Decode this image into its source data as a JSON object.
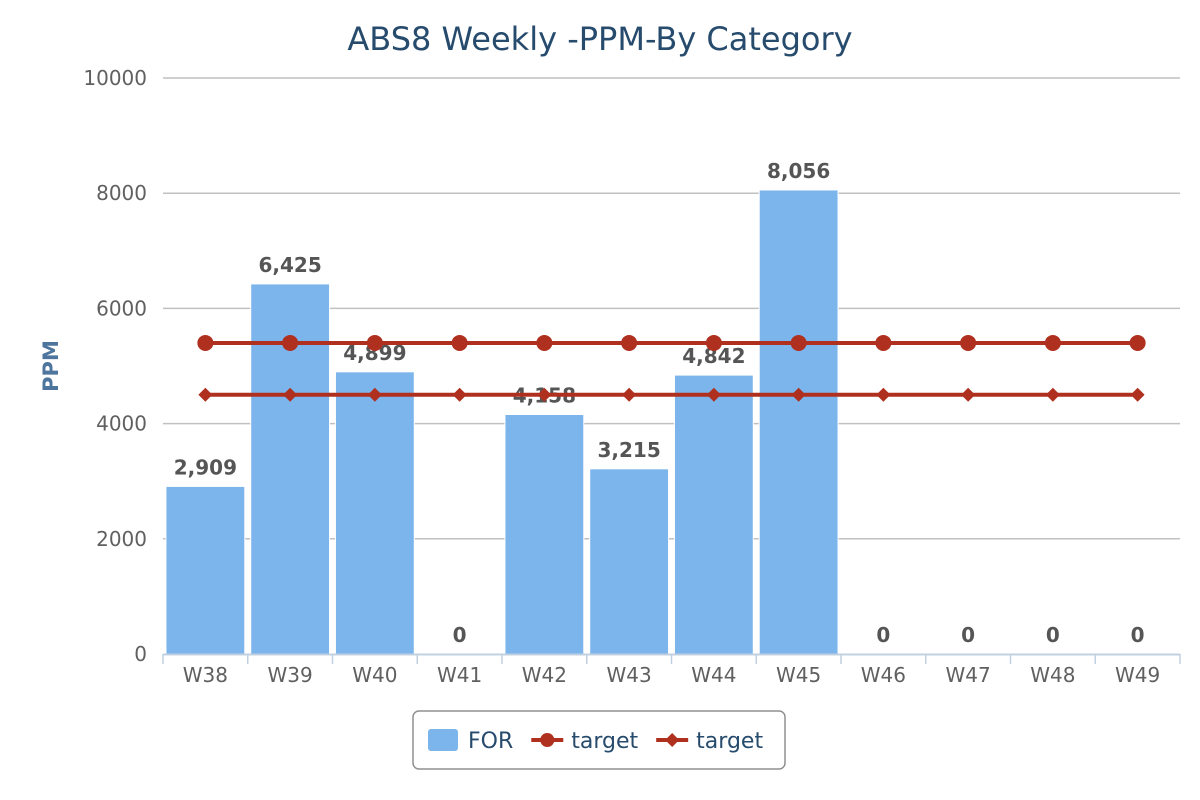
{
  "chart_data": {
    "type": "bar",
    "title": "ABS8 Weekly -PPM-By Category",
    "xlabel": "",
    "ylabel": "PPM",
    "ylim": [
      0,
      10000
    ],
    "yticks": [
      0,
      2000,
      4000,
      6000,
      8000,
      10000
    ],
    "grid": true,
    "legend_position": "bottom-center",
    "categories": [
      "W38",
      "W39",
      "W40",
      "W41",
      "W42",
      "W43",
      "W44",
      "W45",
      "W46",
      "W47",
      "W48",
      "W49"
    ],
    "series": [
      {
        "name": "FOR",
        "type": "bar",
        "color": "#7cb5ec",
        "values": [
          2909,
          6425,
          4899,
          0,
          4158,
          3215,
          4842,
          8056,
          0,
          0,
          0,
          0
        ],
        "data_labels": [
          "2,909",
          "6,425",
          "4,899",
          "0",
          "4,158",
          "3,215",
          "4,842",
          "8,056",
          "0",
          "0",
          "0",
          "0"
        ]
      },
      {
        "name": "target",
        "type": "line",
        "marker": "circle",
        "color": "#b0301f",
        "values": [
          5400,
          5400,
          5400,
          5400,
          5400,
          5400,
          5400,
          5400,
          5400,
          5400,
          5400,
          5400
        ]
      },
      {
        "name": "target",
        "type": "line",
        "marker": "diamond",
        "color": "#b0301f",
        "values": [
          4500,
          4500,
          4500,
          4500,
          4500,
          4500,
          4500,
          4500,
          4500,
          4500,
          4500,
          4500
        ]
      }
    ]
  }
}
